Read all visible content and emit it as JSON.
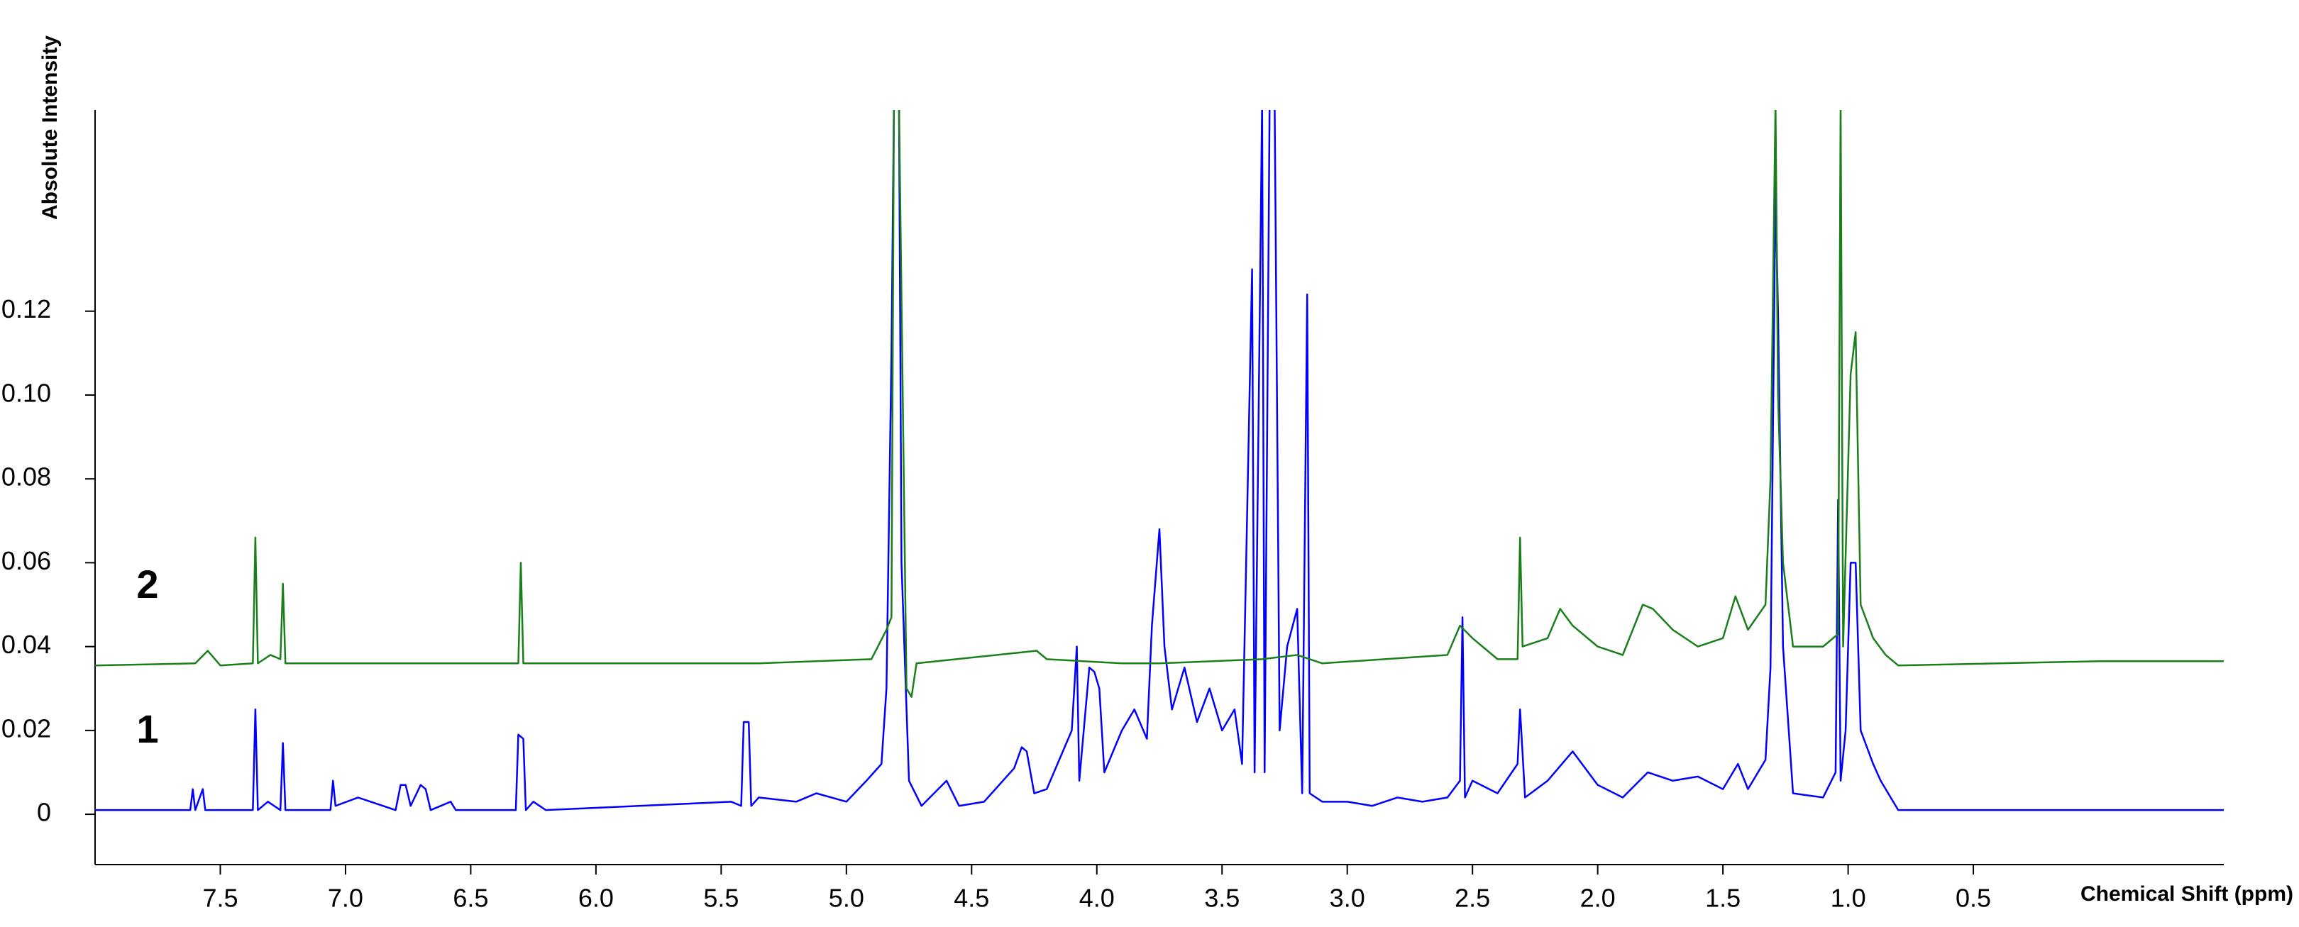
{
  "chart_data": {
    "type": "line",
    "x_label": "Chemical Shift (ppm)",
    "y_label": "Absolute Intensity",
    "xlim": [
      8.0,
      -0.5
    ],
    "ylim": [
      -0.012,
      0.168
    ],
    "xticks": [
      7.5,
      {
        "value": 7,
        "label": "7.0"
      },
      6.5,
      {
        "value": 6,
        "label": "6.0"
      },
      5.5,
      {
        "value": 5,
        "label": "5.0"
      },
      4.5,
      {
        "value": 4,
        "label": "4.0"
      },
      3.5,
      {
        "value": 3,
        "label": "3.0"
      },
      2.5,
      {
        "value": 2,
        "label": "2.0"
      },
      1.5,
      {
        "value": 1,
        "label": "1.0"
      },
      0.5
    ],
    "yticks": [
      0,
      0.02,
      0.04,
      0.06,
      0.08,
      {
        "value": 0.1,
        "label": "0.10"
      },
      0.12
    ],
    "series": [
      {
        "name": "1",
        "color": "#0000ff",
        "x": [
          8.0,
          7.62,
          7.61,
          7.6,
          7.57,
          7.56,
          7.37,
          7.36,
          7.35,
          7.31,
          7.26,
          7.25,
          7.24,
          7.06,
          7.05,
          7.04,
          6.95,
          6.8,
          6.78,
          6.76,
          6.74,
          6.7,
          6.68,
          6.66,
          6.58,
          6.56,
          6.32,
          6.31,
          6.29,
          6.28,
          6.25,
          6.2,
          5.46,
          5.42,
          5.41,
          5.39,
          5.38,
          5.35,
          5.2,
          5.12,
          5.0,
          4.92,
          4.86,
          4.84,
          4.82,
          4.81,
          4.79,
          4.78,
          4.75,
          4.7,
          4.6,
          4.55,
          4.45,
          4.33,
          4.3,
          4.28,
          4.25,
          4.2,
          4.1,
          4.08,
          4.07,
          4.03,
          4.01,
          3.99,
          3.97,
          3.9,
          3.85,
          3.8,
          3.78,
          3.75,
          3.73,
          3.7,
          3.65,
          3.6,
          3.55,
          3.5,
          3.45,
          3.42,
          3.38,
          3.37,
          3.34,
          3.33,
          3.31,
          3.29,
          3.27,
          3.24,
          3.2,
          3.18,
          3.16,
          3.15,
          3.1,
          3.0,
          2.9,
          2.8,
          2.7,
          2.6,
          2.55,
          2.54,
          2.53,
          2.5,
          2.4,
          2.32,
          2.31,
          2.29,
          2.2,
          2.1,
          2.0,
          1.9,
          1.8,
          1.7,
          1.6,
          1.5,
          1.44,
          1.4,
          1.33,
          1.31,
          1.29,
          1.28,
          1.26,
          1.22,
          1.1,
          1.05,
          1.04,
          1.03,
          1.01,
          0.99,
          0.97,
          0.95,
          0.9,
          0.87,
          0.8,
          0.0,
          -0.5
        ],
        "values": [
          0.001,
          0.001,
          0.006,
          0.001,
          0.006,
          0.001,
          0.001,
          0.025,
          0.001,
          0.003,
          0.001,
          0.017,
          0.001,
          0.001,
          0.008,
          0.002,
          0.004,
          0.001,
          0.007,
          0.007,
          0.002,
          0.007,
          0.006,
          0.001,
          0.003,
          0.001,
          0.001,
          0.019,
          0.018,
          0.001,
          0.003,
          0.001,
          0.003,
          0.002,
          0.022,
          0.022,
          0.002,
          0.004,
          0.003,
          0.005,
          0.003,
          0.008,
          0.012,
          0.03,
          0.11,
          0.17,
          0.17,
          0.06,
          0.008,
          0.002,
          0.008,
          0.002,
          0.003,
          0.011,
          0.016,
          0.015,
          0.005,
          0.006,
          0.02,
          0.04,
          0.008,
          0.035,
          0.034,
          0.03,
          0.01,
          0.02,
          0.025,
          0.018,
          0.045,
          0.068,
          0.04,
          0.025,
          0.035,
          0.022,
          0.03,
          0.02,
          0.025,
          0.012,
          0.13,
          0.01,
          0.17,
          0.01,
          0.17,
          0.17,
          0.02,
          0.04,
          0.049,
          0.005,
          0.124,
          0.005,
          0.003,
          0.003,
          0.002,
          0.004,
          0.003,
          0.004,
          0.008,
          0.047,
          0.004,
          0.008,
          0.005,
          0.012,
          0.025,
          0.004,
          0.008,
          0.015,
          0.007,
          0.004,
          0.01,
          0.008,
          0.009,
          0.006,
          0.012,
          0.006,
          0.013,
          0.035,
          0.15,
          0.12,
          0.04,
          0.005,
          0.004,
          0.01,
          0.075,
          0.008,
          0.02,
          0.06,
          0.06,
          0.02,
          0.012,
          0.008,
          0.001,
          0.001,
          0.001
        ]
      },
      {
        "name": "2",
        "color": "#1a7f1a",
        "x": [
          8.0,
          7.6,
          7.55,
          7.5,
          7.37,
          7.36,
          7.35,
          7.3,
          7.26,
          7.25,
          7.24,
          6.31,
          6.3,
          6.29,
          5.35,
          4.9,
          4.84,
          4.82,
          4.81,
          4.79,
          4.76,
          4.74,
          4.72,
          4.24,
          4.2,
          3.9,
          3.75,
          3.34,
          3.2,
          3.1,
          2.6,
          2.55,
          2.5,
          2.4,
          2.32,
          2.31,
          2.3,
          2.2,
          2.15,
          2.1,
          2.0,
          1.9,
          1.82,
          1.78,
          1.7,
          1.6,
          1.5,
          1.45,
          1.4,
          1.33,
          1.31,
          1.29,
          1.28,
          1.26,
          1.22,
          1.1,
          1.04,
          1.03,
          1.02,
          0.99,
          0.97,
          0.95,
          0.9,
          0.85,
          0.8,
          0.0,
          -0.5
        ],
        "values": [
          0.0355,
          0.036,
          0.039,
          0.0355,
          0.036,
          0.066,
          0.036,
          0.038,
          0.037,
          0.055,
          0.036,
          0.036,
          0.06,
          0.036,
          0.036,
          0.037,
          0.044,
          0.047,
          0.17,
          0.17,
          0.03,
          0.028,
          0.036,
          0.039,
          0.037,
          0.036,
          0.036,
          0.037,
          0.038,
          0.036,
          0.038,
          0.045,
          0.042,
          0.037,
          0.037,
          0.066,
          0.04,
          0.042,
          0.049,
          0.045,
          0.04,
          0.038,
          0.05,
          0.049,
          0.044,
          0.04,
          0.042,
          0.052,
          0.044,
          0.05,
          0.08,
          0.17,
          0.1,
          0.06,
          0.04,
          0.04,
          0.043,
          0.17,
          0.04,
          0.105,
          0.115,
          0.05,
          0.042,
          0.038,
          0.0355,
          0.0365,
          0.0365
        ]
      }
    ]
  }
}
